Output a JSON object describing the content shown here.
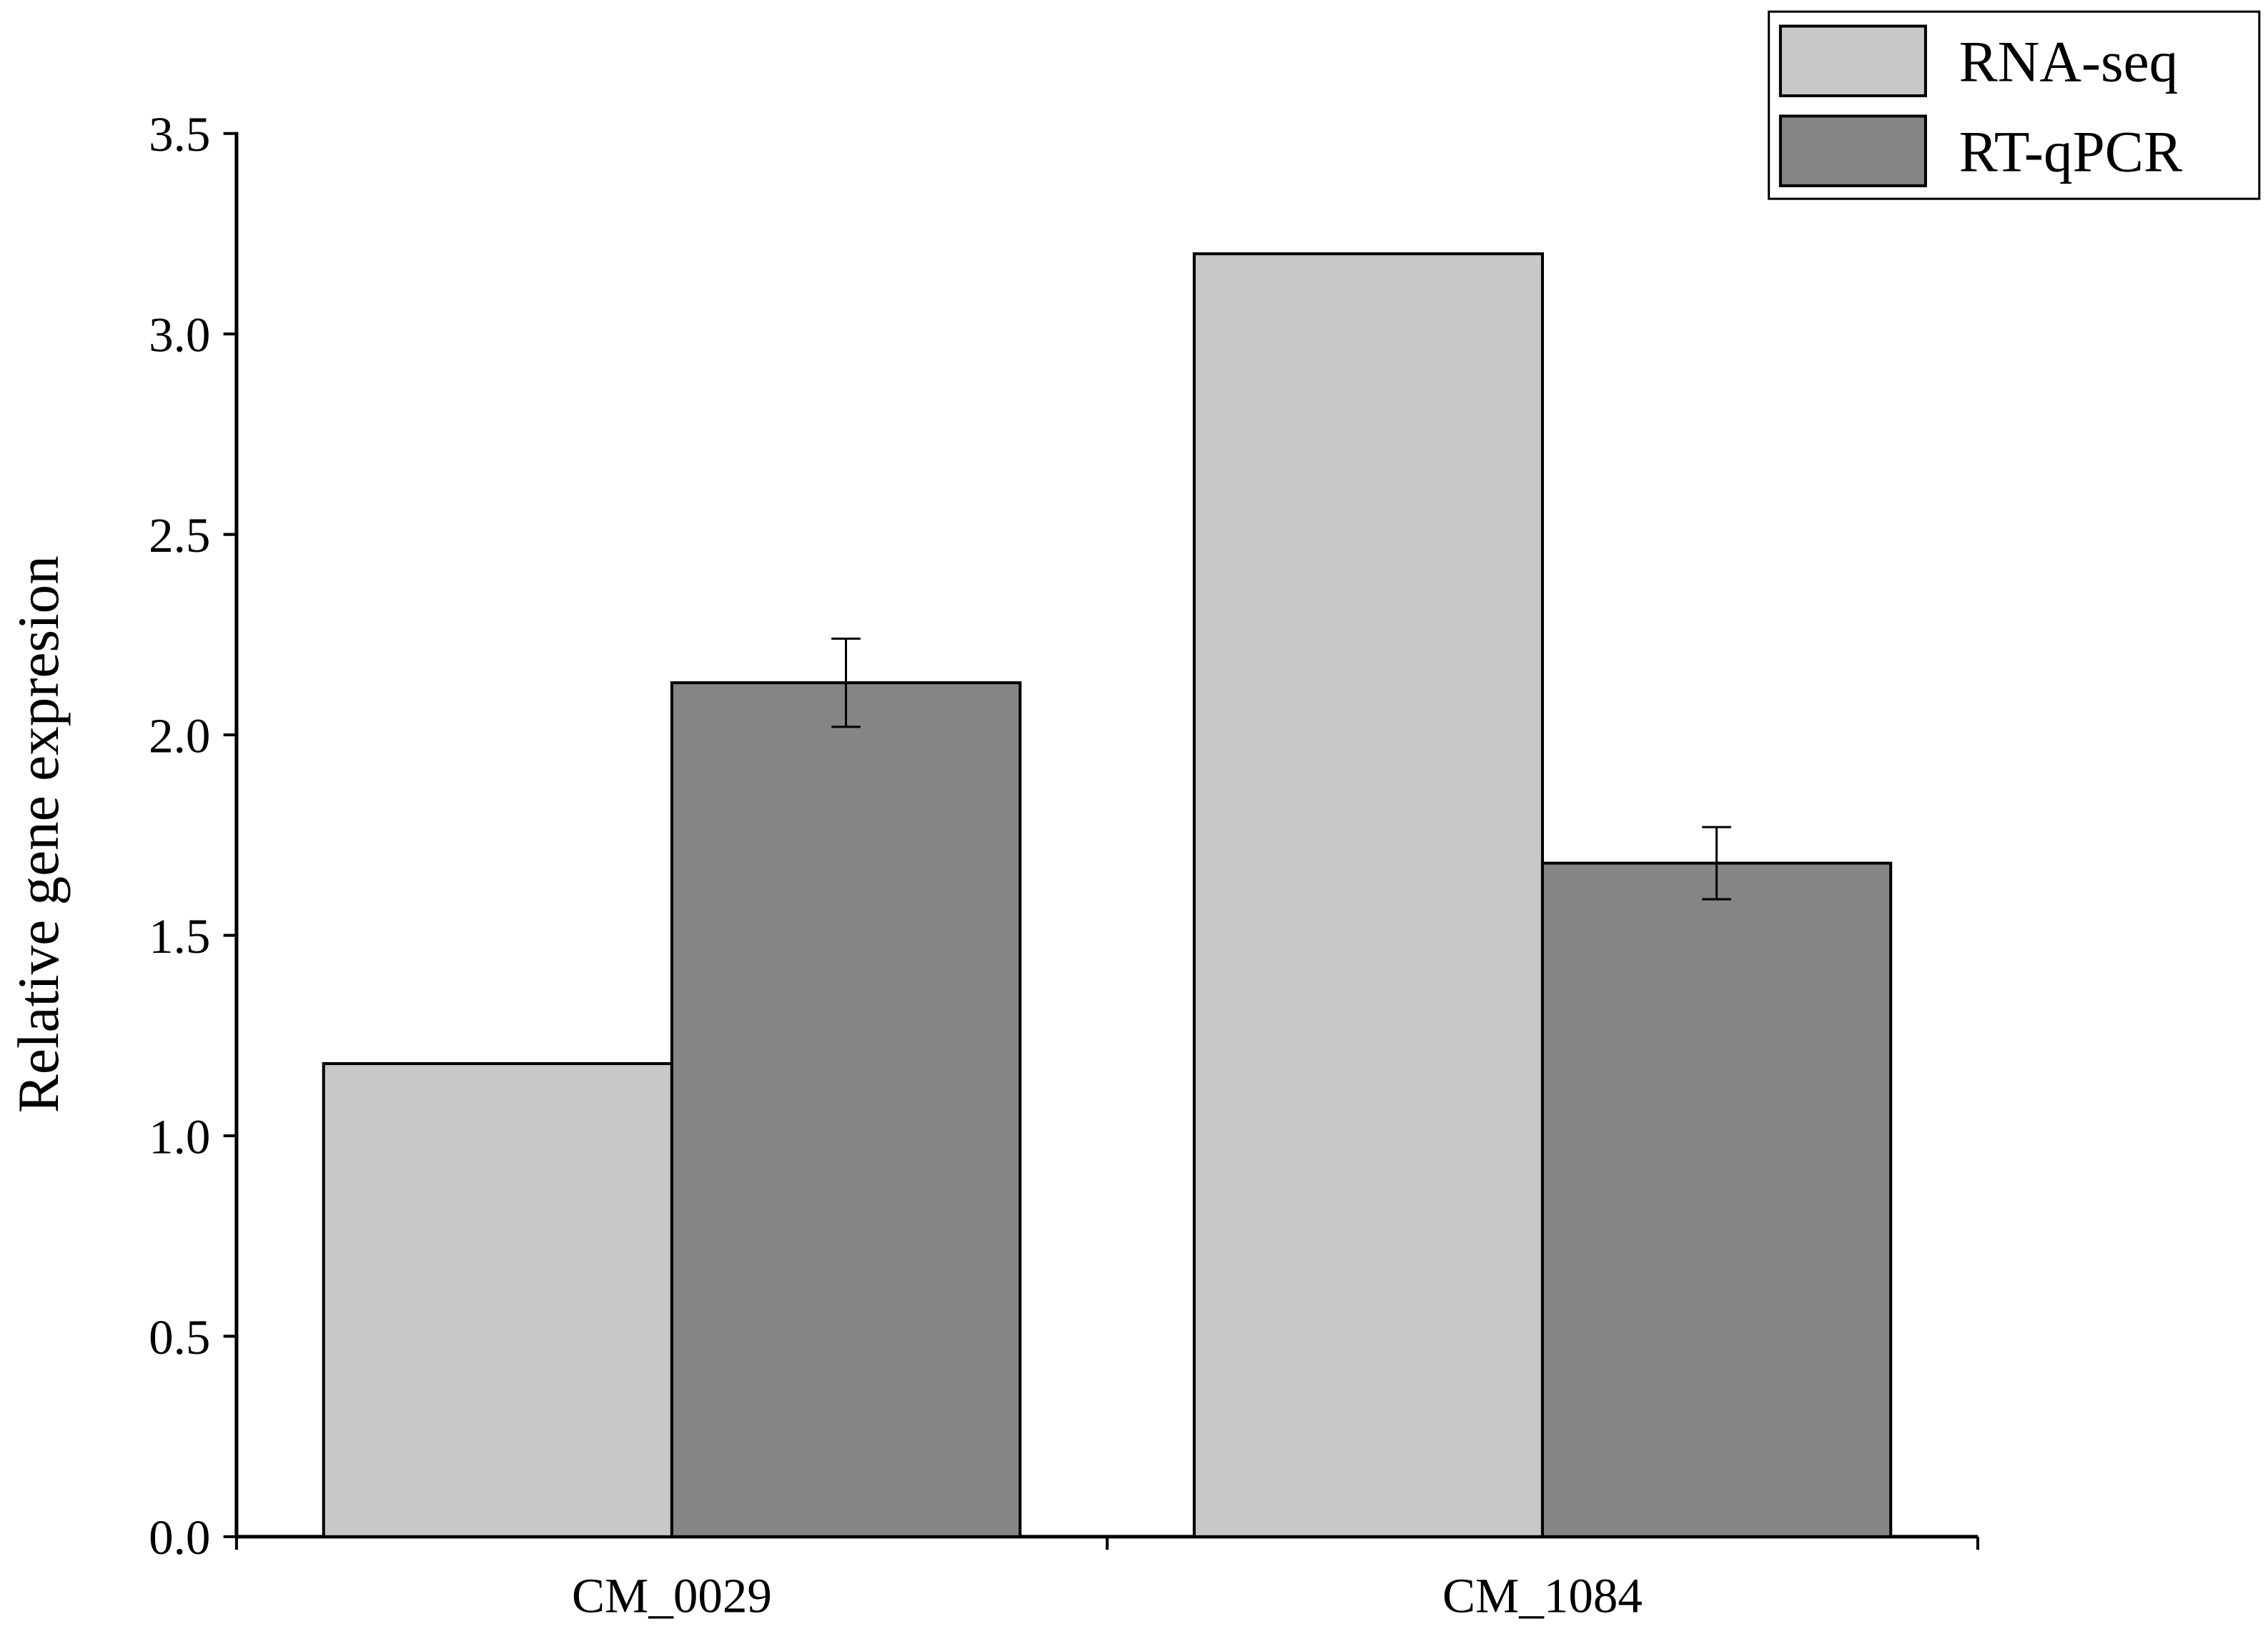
{
  "chart_data": {
    "type": "bar",
    "y_label": "Relative gene expresion",
    "categories": [
      "CM_0029",
      "CM_1084"
    ],
    "series": [
      {
        "name": "RNA-seq",
        "color": "#c8c8c8",
        "values": [
          1.18,
          3.2
        ]
      },
      {
        "name": "RT-qPCR",
        "color": "#858585",
        "values": [
          2.13,
          1.68
        ],
        "errors": [
          0.11,
          0.09
        ]
      }
    ],
    "ylim": [
      0,
      3.5
    ],
    "yticks": [
      {
        "value": 0,
        "label": "0.0"
      },
      0.5,
      {
        "value": 1,
        "label": "1.0"
      },
      1.5,
      {
        "value": 2,
        "label": "2.0"
      },
      2.5,
      {
        "value": 3,
        "label": "3.0"
      },
      3.5
    ],
    "legend": "top-right"
  }
}
